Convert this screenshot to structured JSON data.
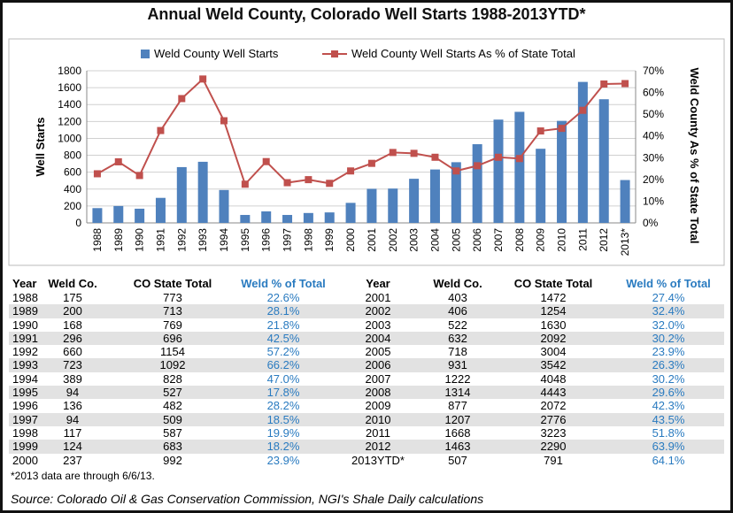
{
  "chart_data": {
    "type": "bar+line",
    "title": "Annual Weld County, Colorado Well Starts 1988-2013YTD*",
    "categories": [
      "1988",
      "1989",
      "1990",
      "1991",
      "1992",
      "1993",
      "1994",
      "1995",
      "1996",
      "1997",
      "1998",
      "1999",
      "2000",
      "2001",
      "2002",
      "2003",
      "2004",
      "2005",
      "2006",
      "2007",
      "2008",
      "2009",
      "2010",
      "2011",
      "2012",
      "2013*"
    ],
    "series": [
      {
        "name": "Weld County Well Starts",
        "type": "bar",
        "axis": "left",
        "color": "#4f81bd",
        "values": [
          175,
          200,
          168,
          296,
          660,
          723,
          389,
          94,
          136,
          94,
          117,
          124,
          237,
          403,
          406,
          522,
          632,
          718,
          931,
          1222,
          1314,
          877,
          1207,
          1668,
          1463,
          507
        ]
      },
      {
        "name": "Weld County Well Starts As % of State Total",
        "type": "line",
        "axis": "right",
        "color": "#c0504d",
        "values": [
          22.6,
          28.1,
          21.8,
          42.5,
          57.2,
          66.2,
          47.0,
          17.8,
          28.2,
          18.5,
          19.9,
          18.2,
          23.9,
          27.4,
          32.4,
          32.0,
          30.2,
          23.9,
          26.3,
          30.2,
          29.6,
          42.3,
          43.5,
          51.8,
          63.9,
          64.1
        ]
      }
    ],
    "ylabel": "Well  Starts",
    "ylabel_right": "Weld County As % of State Total",
    "ylim": [
      0,
      1800
    ],
    "yticks": [
      "0",
      "200",
      "400",
      "600",
      "800",
      "1000",
      "1200",
      "1400",
      "1600",
      "1800"
    ],
    "ylim_right": [
      0,
      70
    ],
    "yticks_right": [
      "0%",
      "10%",
      "20%",
      "30%",
      "40%",
      "50%",
      "60%",
      "70%"
    ],
    "grid": true,
    "legend": "top"
  },
  "table": {
    "headers": [
      "Year",
      "Weld Co.",
      "CO State Total",
      "Weld % of Total"
    ],
    "left": [
      [
        "1988",
        "175",
        "773",
        "22.6%"
      ],
      [
        "1989",
        "200",
        "713",
        "28.1%"
      ],
      [
        "1990",
        "168",
        "769",
        "21.8%"
      ],
      [
        "1991",
        "296",
        "696",
        "42.5%"
      ],
      [
        "1992",
        "660",
        "1154",
        "57.2%"
      ],
      [
        "1993",
        "723",
        "1092",
        "66.2%"
      ],
      [
        "1994",
        "389",
        "828",
        "47.0%"
      ],
      [
        "1995",
        "94",
        "527",
        "17.8%"
      ],
      [
        "1996",
        "136",
        "482",
        "28.2%"
      ],
      [
        "1997",
        "94",
        "509",
        "18.5%"
      ],
      [
        "1998",
        "117",
        "587",
        "19.9%"
      ],
      [
        "1999",
        "124",
        "683",
        "18.2%"
      ],
      [
        "2000",
        "237",
        "992",
        "23.9%"
      ]
    ],
    "right": [
      [
        "2001",
        "403",
        "1472",
        "27.4%"
      ],
      [
        "2002",
        "406",
        "1254",
        "32.4%"
      ],
      [
        "2003",
        "522",
        "1630",
        "32.0%"
      ],
      [
        "2004",
        "632",
        "2092",
        "30.2%"
      ],
      [
        "2005",
        "718",
        "3004",
        "23.9%"
      ],
      [
        "2006",
        "931",
        "3542",
        "26.3%"
      ],
      [
        "2007",
        "1222",
        "4048",
        "30.2%"
      ],
      [
        "2008",
        "1314",
        "4443",
        "29.6%"
      ],
      [
        "2009",
        "877",
        "2072",
        "42.3%"
      ],
      [
        "2010",
        "1207",
        "2776",
        "43.5%"
      ],
      [
        "2011",
        "1668",
        "3223",
        "51.8%"
      ],
      [
        "2012",
        "1463",
        "2290",
        "63.9%"
      ],
      [
        "2013YTD*",
        "507",
        "791",
        "64.1%"
      ]
    ]
  },
  "footnote": "*2013 data are through 6/6/13.",
  "source": "Source: Colorado Oil & Gas Conservation Commission, NGI's Shale Daily calculations"
}
